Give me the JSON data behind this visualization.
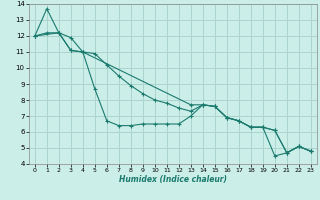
{
  "title": "",
  "xlabel": "Humidex (Indice chaleur)",
  "xlim": [
    -0.5,
    23.5
  ],
  "ylim": [
    4,
    14
  ],
  "yticks": [
    4,
    5,
    6,
    7,
    8,
    9,
    10,
    11,
    12,
    13,
    14
  ],
  "xticks": [
    0,
    1,
    2,
    3,
    4,
    5,
    6,
    7,
    8,
    9,
    10,
    11,
    12,
    13,
    14,
    15,
    16,
    17,
    18,
    19,
    20,
    21,
    22,
    23
  ],
  "bg_color": "#cceee8",
  "grid_color": "#aad4ce",
  "line_color": "#1a7a6e",
  "lines": [
    {
      "x": [
        0,
        1,
        2,
        3,
        4,
        5,
        6,
        7,
        8,
        9,
        10,
        11,
        12,
        13,
        14,
        15,
        16,
        17,
        18,
        19,
        20,
        21,
        22,
        23
      ],
      "y": [
        12.0,
        13.7,
        12.2,
        11.9,
        11.0,
        8.7,
        6.7,
        6.4,
        6.4,
        6.5,
        6.5,
        6.5,
        6.5,
        7.0,
        7.7,
        7.6,
        6.9,
        6.7,
        6.3,
        6.3,
        4.5,
        4.7,
        5.1,
        4.8
      ]
    },
    {
      "x": [
        0,
        1,
        2,
        3,
        4,
        5,
        6,
        7,
        8,
        9,
        10,
        11,
        12,
        13,
        14,
        15,
        16,
        17,
        18,
        19,
        20,
        21,
        22,
        23
      ],
      "y": [
        12.0,
        12.2,
        12.2,
        11.1,
        11.0,
        10.9,
        10.2,
        9.5,
        8.9,
        8.4,
        8.0,
        7.8,
        7.5,
        7.3,
        7.7,
        7.6,
        6.9,
        6.7,
        6.3,
        6.3,
        6.1,
        4.7,
        5.1,
        4.8
      ]
    },
    {
      "x": [
        0,
        2,
        3,
        4,
        13,
        14,
        15,
        16,
        17,
        18,
        19,
        20,
        21,
        22,
        23
      ],
      "y": [
        12.0,
        12.2,
        11.1,
        11.0,
        7.7,
        7.7,
        7.6,
        6.9,
        6.7,
        6.3,
        6.3,
        6.1,
        4.7,
        5.1,
        4.8
      ]
    }
  ]
}
